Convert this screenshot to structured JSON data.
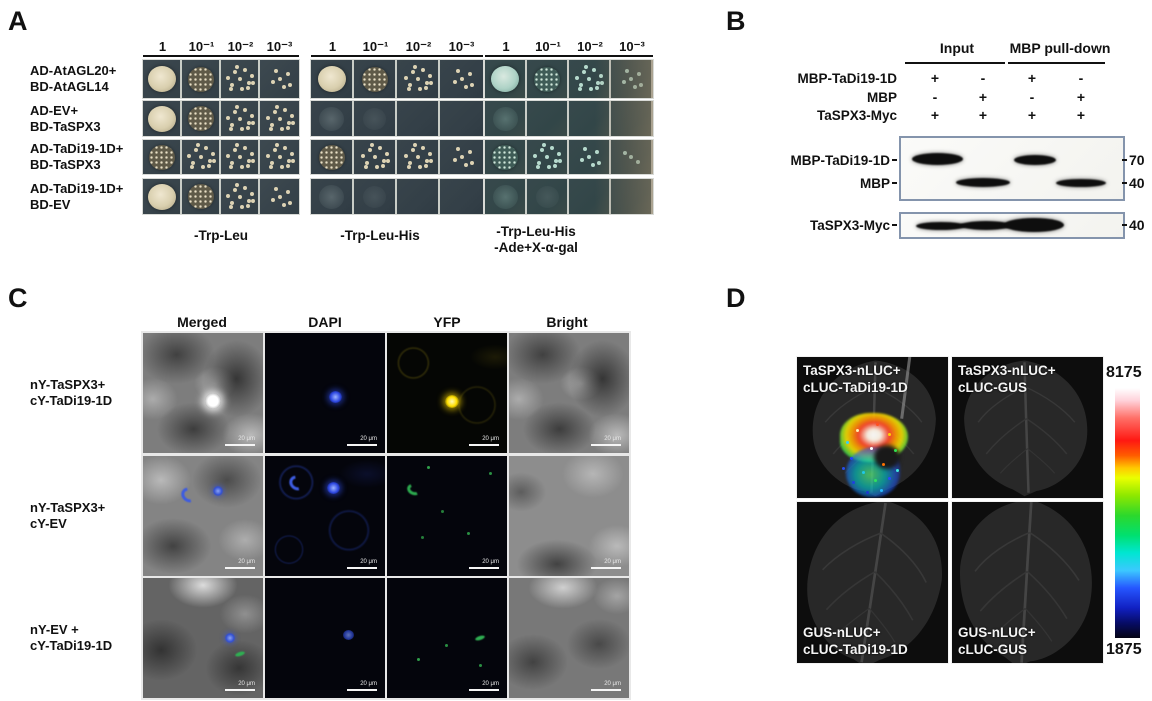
{
  "panelA": {
    "label": "A",
    "dilutions": [
      "1",
      "10⁻¹",
      "10⁻²",
      "10⁻³"
    ],
    "row_labels": [
      [
        "AD-AtAGL20+",
        "BD-AtAGL14"
      ],
      [
        "AD-EV+",
        "BD-TaSPX3"
      ],
      [
        "AD-TaDi19-1D+",
        "BD-TaSPX3"
      ],
      [
        "AD-TaDi19-1D+",
        "BD-EV"
      ]
    ],
    "plates": [
      {
        "medium": [
          "-Trp-Leu"
        ],
        "teal": false,
        "growth": [
          [
            "solid",
            "speckled",
            "scattered",
            "sparse"
          ],
          [
            "solid",
            "speckled",
            "scattered",
            "scattered"
          ],
          [
            "speckled",
            "scattered",
            "scattered",
            "scattered"
          ],
          [
            "solid",
            "speckled",
            "scattered",
            "sparse"
          ]
        ]
      },
      {
        "medium": [
          "-Trp-Leu-His"
        ],
        "teal": false,
        "growth": [
          [
            "solid",
            "speckled",
            "scattered",
            "sparse"
          ],
          [
            "faint",
            "faint2",
            "none",
            "none"
          ],
          [
            "speckled",
            "scattered",
            "scattered",
            "sparse"
          ],
          [
            "faint",
            "faint2",
            "none",
            "none"
          ]
        ]
      },
      {
        "medium": [
          "-Trp-Leu-His",
          "-Ade+X-α-gal"
        ],
        "teal": true,
        "growth": [
          [
            "solid",
            "speckled",
            "scattered",
            "sparse"
          ],
          [
            "faint",
            "none",
            "none",
            "none"
          ],
          [
            "speckled",
            "scattered",
            "sparse",
            "dots"
          ],
          [
            "faint",
            "faint2",
            "none",
            "none"
          ]
        ]
      }
    ]
  },
  "panelB": {
    "label": "B",
    "group_headers": [
      "Input",
      "MBP pull-down"
    ],
    "construct_rows": [
      {
        "label": "MBP-TaDi19-1D",
        "values": [
          "+",
          "-",
          "+",
          "-"
        ]
      },
      {
        "label": "MBP",
        "values": [
          "-",
          "+",
          "-",
          "+"
        ]
      },
      {
        "label": "TaSPX3-Myc",
        "values": [
          "+",
          "+",
          "+",
          "+"
        ]
      }
    ],
    "blot1": {
      "row_labels": [
        "MBP-TaDi19-1D",
        "MBP"
      ],
      "mw_labels": [
        "70",
        "40"
      ]
    },
    "blot2": {
      "row_label": "TaSPX3-Myc",
      "mw_label": "40"
    }
  },
  "panelC": {
    "label": "C",
    "col_headers": [
      "Merged",
      "DAPI",
      "YFP",
      "Bright"
    ],
    "row_labels": [
      [
        "nY-TaSPX3+",
        "cY-TaDi19-1D"
      ],
      [
        "nY-TaSPX3+",
        "cY-EV"
      ],
      [
        "nY-EV +",
        "cY-TaDi19-1D"
      ]
    ],
    "scale_label": "20 μm"
  },
  "panelD": {
    "label": "D",
    "quadrants": [
      {
        "line1": "TaSPX3-nLUC+",
        "line2": "cLUC-TaDi19-1D",
        "signal": true,
        "label_pos": "top"
      },
      {
        "line1": "TaSPX3-nLUC+",
        "line2": "cLUC-GUS",
        "signal": false,
        "label_pos": "top"
      },
      {
        "line1": "GUS-nLUC+",
        "line2": "cLUC-TaDi19-1D",
        "signal": false,
        "label_pos": "bottom"
      },
      {
        "line1": "GUS-nLUC+",
        "line2": "cLUC-GUS",
        "signal": false,
        "label_pos": "bottom"
      }
    ],
    "colorbar": {
      "max": "8175",
      "min": "1875"
    }
  }
}
